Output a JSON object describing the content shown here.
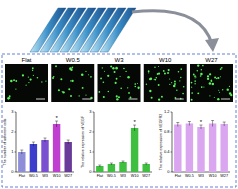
{
  "images": {
    "labels": [
      "Flat",
      "W0.5",
      "W3",
      "W10",
      "W27"
    ]
  },
  "chart_data": [
    {
      "type": "bar",
      "y_label": "The number of adherent cells",
      "categories": [
        "Flat",
        "W0.5",
        "W3",
        "W10",
        "W27"
      ],
      "values": [
        1.0,
        1.4,
        1.6,
        2.4,
        1.5
      ],
      "errors": [
        0.1,
        0.1,
        0.1,
        0.15,
        0.1
      ],
      "colors": [
        "#8e8ed8",
        "#3d3dcc",
        "#7a4fd0",
        "#c03fd0",
        "#6a3a9a"
      ],
      "ylim": [
        0,
        3
      ],
      "yticks": [
        0,
        1,
        2,
        3
      ],
      "annotations": [
        {
          "index": 3,
          "text": "*"
        }
      ]
    },
    {
      "type": "bar",
      "y_label": "The relative expression of VEGF",
      "categories": [
        "Flat",
        "W0.5",
        "W3",
        "W10",
        "W27"
      ],
      "values": [
        0.3,
        0.4,
        0.5,
        2.2,
        0.4
      ],
      "errors": [
        0.05,
        0.05,
        0.05,
        0.15,
        0.05
      ],
      "color": "#3fbf3f",
      "ylim": [
        0,
        3
      ],
      "yticks": [
        0,
        1,
        2,
        3
      ],
      "annotations": [
        {
          "index": 3,
          "text": "*"
        }
      ]
    },
    {
      "type": "bar",
      "y_label": "The relative expression of VEGFR2",
      "categories": [
        "Flat",
        "W0.5",
        "W3",
        "W10",
        "W27"
      ],
      "values": [
        0.95,
        0.97,
        0.9,
        0.97,
        0.96
      ],
      "errors": [
        0.04,
        0.04,
        0.04,
        0.06,
        0.04
      ],
      "color": "#d9a6ef",
      "ylim": [
        0,
        1.2
      ],
      "yticks": [
        0,
        0.4,
        0.8,
        1.2
      ],
      "annotations": [
        {
          "index": 2,
          "text": "*"
        }
      ]
    }
  ]
}
